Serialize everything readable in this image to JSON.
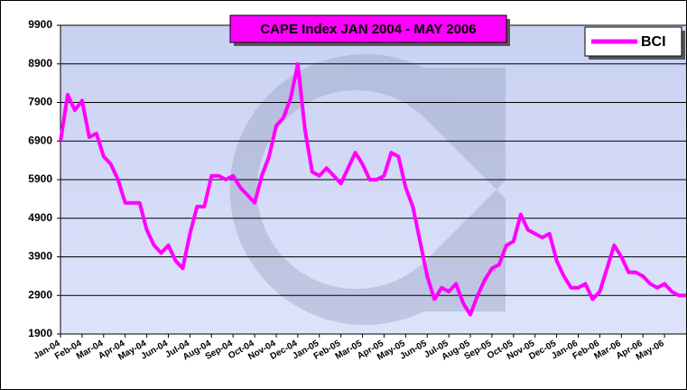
{
  "chart_data": {
    "type": "line",
    "title": "CAPE Index JAN 2004 - MAY 2006",
    "categories": [
      "Jan-04",
      null,
      null,
      "Feb-04",
      null,
      null,
      "Mar-04",
      null,
      null,
      "Apr-04",
      null,
      null,
      "May-04",
      null,
      null,
      "Jun-04",
      null,
      null,
      "Jul-04",
      null,
      null,
      "Aug-04",
      null,
      null,
      "Sep-04",
      null,
      null,
      "Oct-04",
      null,
      null,
      "Nov-04",
      null,
      null,
      "Dec-04",
      null,
      null,
      "Jan-05",
      null,
      null,
      "Feb-05",
      null,
      null,
      "Mar-05",
      null,
      null,
      "Apr-05",
      null,
      null,
      "May-05",
      null,
      null,
      "Jun-05",
      null,
      null,
      "Jul-05",
      null,
      null,
      "Aug-05",
      null,
      null,
      "Sep-05",
      null,
      null,
      "Oct-05",
      null,
      null,
      "Nov-05",
      null,
      null,
      "Dec-05",
      null,
      null,
      "Jan-06",
      null,
      null,
      "Feb-06",
      null,
      null,
      "Mar-06",
      null,
      null,
      "Apr-06",
      null,
      null,
      "May-06",
      null,
      null,
      null
    ],
    "series": [
      {
        "name": "BCI",
        "color": "#ff00ff",
        "values": [
          6900,
          8100,
          7700,
          7950,
          7000,
          7100,
          6500,
          6300,
          5900,
          5300,
          5300,
          5300,
          4600,
          4200,
          4000,
          4200,
          3800,
          3600,
          4500,
          5200,
          5200,
          6000,
          6000,
          5900,
          6000,
          5700,
          5500,
          5300,
          6000,
          6500,
          7300,
          7500,
          8000,
          8900,
          7200,
          6100,
          6000,
          6200,
          6000,
          5800,
          6200,
          6600,
          6300,
          5900,
          5900,
          6000,
          6600,
          6500,
          5700,
          5200,
          4300,
          3400,
          2800,
          3100,
          3000,
          3200,
          2700,
          2400,
          2900,
          3300,
          3600,
          3700,
          4200,
          4300,
          5000,
          4600,
          4500,
          4400,
          4500,
          3800,
          3400,
          3100,
          3100,
          3200,
          2800,
          3000,
          3600,
          4200,
          3900,
          3500,
          3500,
          3400,
          3200,
          3100,
          3200,
          3000,
          2900,
          2900
        ]
      }
    ],
    "ylim": [
      1900,
      9900
    ],
    "yticks": [
      1900,
      2900,
      3900,
      4900,
      5900,
      6900,
      7900,
      8900,
      9900
    ],
    "grid": true,
    "legend": "upper right"
  }
}
